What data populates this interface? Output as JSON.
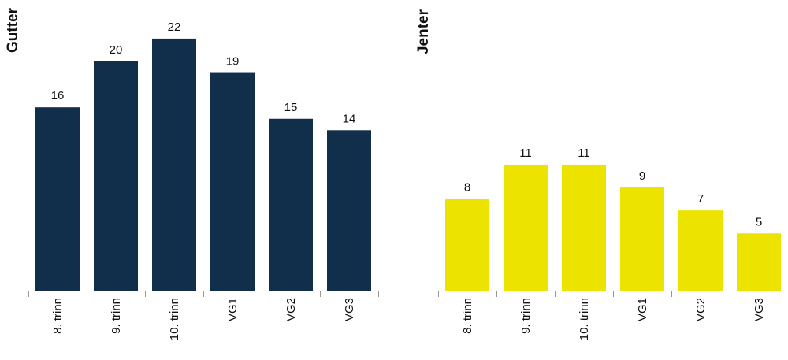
{
  "chart_data": [
    {
      "type": "bar",
      "title": "Gutter",
      "categories": [
        "8. trinn",
        "9. trinn",
        "10. trinn",
        "VG1",
        "VG2",
        "VG3"
      ],
      "values": [
        16,
        20,
        22,
        19,
        15,
        14
      ],
      "color": "#112e4b"
    },
    {
      "type": "bar",
      "title": "Jenter",
      "categories": [
        "8. trinn",
        "9. trinn",
        "10. trinn",
        "VG1",
        "VG2",
        "VG3"
      ],
      "values": [
        8,
        11,
        11,
        9,
        7,
        5
      ],
      "color": "#ede300"
    }
  ]
}
